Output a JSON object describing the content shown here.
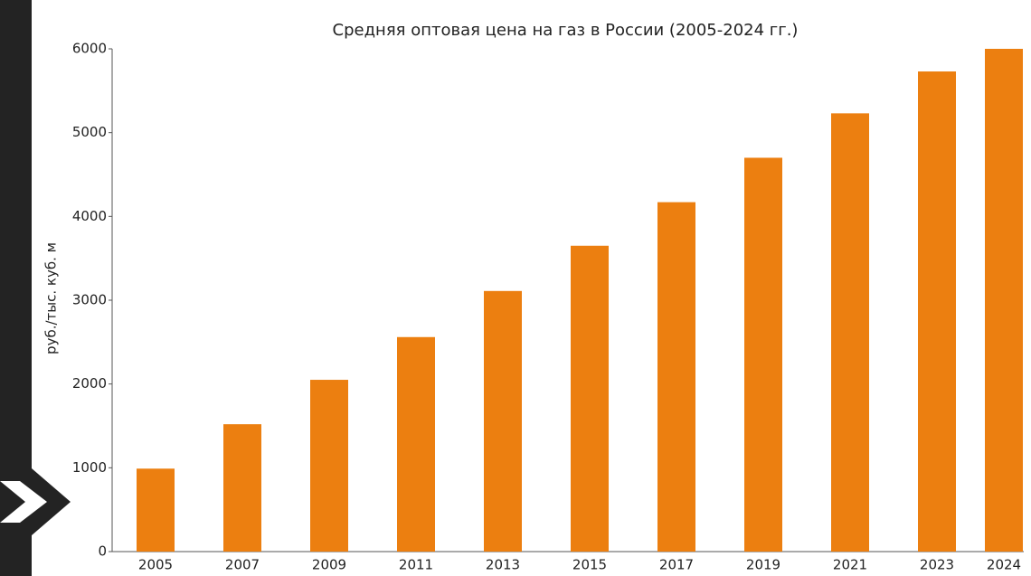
{
  "chart_data": {
    "type": "bar",
    "title": "Средняя оптовая цена на газ в России (2005-2024 гг.)",
    "y_label": "руб./тыс. куб. м",
    "categories": [
      "2005",
      "2007",
      "2009",
      "2011",
      "2013",
      "2015",
      "2017",
      "2019",
      "2021",
      "2023",
      "2024"
    ],
    "values": [
      990,
      1520,
      2050,
      2560,
      3110,
      3650,
      4170,
      4700,
      5230,
      5730,
      6000
    ],
    "color": "#ec7f10",
    "ylim": [
      0,
      6000
    ],
    "yticks": [
      0,
      1000,
      2000,
      3000,
      4000,
      5000,
      6000
    ],
    "grid": false
  }
}
